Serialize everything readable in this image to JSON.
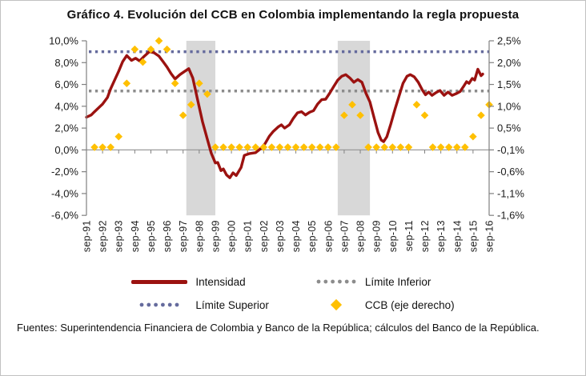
{
  "page": {
    "title": "Gráfico 4. Evolución del CCB en Colombia implementando la regla propuesta",
    "source_note": "Fuentes: Superintendencia Financiera de Colombia y Banco de la República; cálculos del Banco de la República."
  },
  "legend": {
    "items": [
      {
        "label": "Intensidad",
        "swatch": "line",
        "color": "#9B1210",
        "slug": "intensidad"
      },
      {
        "label": "Límite Inferior",
        "swatch": "dots",
        "color": "#8C8C8C",
        "slug": "limite-inferior"
      },
      {
        "label": "Límite Superior",
        "swatch": "dots",
        "color": "#656B9D",
        "slug": "limite-superior"
      },
      {
        "label": "CCB (eje derecho)",
        "swatch": "diamond",
        "color": "#FFC000",
        "slug": "ccb"
      }
    ]
  },
  "chart_data": {
    "type": "line",
    "title": "Gráfico 4. Evolución del CCB en Colombia implementando la regla propuesta",
    "x_unit": "years since sep-91 (0 = sep-91, 0.5 = mar-92, semi-annual)",
    "x_categories": [
      "sep-91",
      "sep-92",
      "sep-93",
      "sep-94",
      "sep-95",
      "sep-96",
      "sep-97",
      "sep-98",
      "sep-99",
      "sep-00",
      "sep-01",
      "sep-02",
      "sep-03",
      "sep-04",
      "sep-05",
      "sep-06",
      "sep-07",
      "sep-08",
      "sep-09",
      "sep-10",
      "sep-11",
      "sep-12",
      "sep-13",
      "sep-14",
      "sep-15",
      "sep-16"
    ],
    "left_axis": {
      "max": 10,
      "min": -6,
      "tick_labels": [
        "10,0%",
        "8,0%",
        "6,0%",
        "4,0%",
        "2,0%",
        "0,0%",
        "-2,0%",
        "-4,0%",
        "-6,0%"
      ],
      "tick_values": [
        10,
        8,
        6,
        4,
        2,
        0,
        -2,
        -4,
        -6
      ]
    },
    "right_axis": {
      "max": 2.5,
      "min": -1.6,
      "tick_labels": [
        "2,5%",
        "2,0%",
        "1,5%",
        "1,0%",
        "0,5%",
        "-0,1%",
        "-0,6%",
        "-1,1%",
        "-1,6%"
      ]
    },
    "grid": "off",
    "legend_position": "bottom",
    "shaded_bands": {
      "color": "#D8D8D8",
      "ranges_years": [
        [
          6.2,
          8.0
        ],
        [
          15.6,
          17.6
        ]
      ]
    },
    "series": {
      "intensidad": {
        "name": "Intensidad",
        "axis": "left",
        "style": "solid-line",
        "color": "#9B1210",
        "points": [
          [
            0,
            3.0
          ],
          [
            0.3,
            3.2
          ],
          [
            0.5,
            3.5
          ],
          [
            1,
            4.2
          ],
          [
            1.3,
            4.8
          ],
          [
            1.5,
            5.6
          ],
          [
            1.75,
            6.4
          ],
          [
            2,
            7.2
          ],
          [
            2.25,
            8.1
          ],
          [
            2.5,
            8.65
          ],
          [
            2.8,
            8.2
          ],
          [
            3.05,
            8.4
          ],
          [
            3.3,
            8.15
          ],
          [
            3.6,
            8.6
          ],
          [
            3.9,
            9.0
          ],
          [
            4.2,
            8.9
          ],
          [
            4.5,
            8.6
          ],
          [
            4.75,
            8.1
          ],
          [
            5,
            7.6
          ],
          [
            5.25,
            7.0
          ],
          [
            5.5,
            6.5
          ],
          [
            5.8,
            6.9
          ],
          [
            6.1,
            7.2
          ],
          [
            6.35,
            7.45
          ],
          [
            6.6,
            6.6
          ],
          [
            6.9,
            4.6
          ],
          [
            7.2,
            2.6
          ],
          [
            7.5,
            1.0
          ],
          [
            7.75,
            -0.3
          ],
          [
            8,
            -1.2
          ],
          [
            8.15,
            -1.15
          ],
          [
            8.35,
            -1.9
          ],
          [
            8.5,
            -1.75
          ],
          [
            8.7,
            -2.3
          ],
          [
            8.9,
            -2.55
          ],
          [
            9.1,
            -2.1
          ],
          [
            9.3,
            -2.35
          ],
          [
            9.6,
            -1.6
          ],
          [
            9.8,
            -0.5
          ],
          [
            10.1,
            -0.35
          ],
          [
            10.5,
            -0.25
          ],
          [
            10.8,
            0.1
          ],
          [
            11.1,
            0.6
          ],
          [
            11.35,
            1.25
          ],
          [
            11.6,
            1.7
          ],
          [
            11.9,
            2.1
          ],
          [
            12.1,
            2.3
          ],
          [
            12.3,
            2.0
          ],
          [
            12.6,
            2.3
          ],
          [
            12.85,
            2.9
          ],
          [
            13.1,
            3.4
          ],
          [
            13.35,
            3.5
          ],
          [
            13.6,
            3.2
          ],
          [
            13.85,
            3.45
          ],
          [
            14.1,
            3.6
          ],
          [
            14.35,
            4.2
          ],
          [
            14.6,
            4.6
          ],
          [
            14.85,
            4.65
          ],
          [
            15.1,
            5.2
          ],
          [
            15.35,
            5.8
          ],
          [
            15.6,
            6.4
          ],
          [
            15.85,
            6.75
          ],
          [
            16.1,
            6.9
          ],
          [
            16.35,
            6.6
          ],
          [
            16.6,
            6.2
          ],
          [
            16.85,
            6.45
          ],
          [
            17.1,
            6.2
          ],
          [
            17.35,
            5.2
          ],
          [
            17.6,
            4.4
          ],
          [
            17.85,
            3.0
          ],
          [
            18.1,
            1.6
          ],
          [
            18.3,
            0.9
          ],
          [
            18.45,
            0.75
          ],
          [
            18.65,
            1.2
          ],
          [
            18.9,
            2.4
          ],
          [
            19.15,
            3.7
          ],
          [
            19.4,
            4.9
          ],
          [
            19.65,
            6.1
          ],
          [
            19.9,
            6.75
          ],
          [
            20.1,
            6.9
          ],
          [
            20.35,
            6.7
          ],
          [
            20.6,
            6.2
          ],
          [
            20.85,
            5.5
          ],
          [
            21.05,
            5.05
          ],
          [
            21.25,
            5.3
          ],
          [
            21.45,
            5.0
          ],
          [
            21.7,
            5.25
          ],
          [
            21.95,
            5.45
          ],
          [
            22.2,
            5.0
          ],
          [
            22.45,
            5.3
          ],
          [
            22.7,
            5.0
          ],
          [
            22.95,
            5.15
          ],
          [
            23.2,
            5.35
          ],
          [
            23.45,
            5.9
          ],
          [
            23.6,
            6.25
          ],
          [
            23.75,
            6.1
          ],
          [
            23.95,
            6.55
          ],
          [
            24.1,
            6.4
          ],
          [
            24.3,
            7.4
          ],
          [
            24.5,
            6.8
          ],
          [
            24.6,
            6.95
          ]
        ]
      },
      "limite_superior": {
        "name": "Límite Superior",
        "axis": "left",
        "style": "dotted",
        "color": "#656B9D",
        "value": 9.0
      },
      "limite_inferior": {
        "name": "Límite Inferior",
        "axis": "left",
        "style": "dotted",
        "color": "#8C8C8C",
        "value": 5.4
      },
      "ccb": {
        "name": "CCB (eje derecho)",
        "axis": "right",
        "style": "diamond-markers",
        "color": "#FFC000",
        "points": [
          [
            0.5,
            0
          ],
          [
            1,
            0
          ],
          [
            1.5,
            0
          ],
          [
            2,
            0.25
          ],
          [
            2.5,
            1.5
          ],
          [
            3,
            2.3
          ],
          [
            3.5,
            2.0
          ],
          [
            4,
            2.3
          ],
          [
            4.5,
            2.5
          ],
          [
            5,
            2.3
          ],
          [
            5.5,
            1.5
          ],
          [
            6,
            0.75
          ],
          [
            6.5,
            1.0
          ],
          [
            7,
            1.5
          ],
          [
            7.5,
            1.25
          ],
          [
            8,
            0
          ],
          [
            8.5,
            0
          ],
          [
            9,
            0
          ],
          [
            9.5,
            0
          ],
          [
            10,
            0
          ],
          [
            10.5,
            0
          ],
          [
            11,
            0
          ],
          [
            11.5,
            0
          ],
          [
            12,
            0
          ],
          [
            12.5,
            0
          ],
          [
            13,
            0
          ],
          [
            13.5,
            0
          ],
          [
            14,
            0
          ],
          [
            14.5,
            0
          ],
          [
            15,
            0
          ],
          [
            15.5,
            0
          ],
          [
            16,
            0.75
          ],
          [
            16.5,
            1.0
          ],
          [
            17,
            0.75
          ],
          [
            17.5,
            0
          ],
          [
            18,
            0
          ],
          [
            18.5,
            0
          ],
          [
            19,
            0
          ],
          [
            19.5,
            0
          ],
          [
            20,
            0
          ],
          [
            20.5,
            1.0
          ],
          [
            21,
            0.75
          ],
          [
            21.5,
            0
          ],
          [
            22,
            0
          ],
          [
            22.5,
            0
          ],
          [
            23,
            0
          ],
          [
            23.5,
            0
          ],
          [
            24,
            0.25
          ],
          [
            24.5,
            0.75
          ],
          [
            25,
            1.0
          ]
        ]
      }
    }
  }
}
